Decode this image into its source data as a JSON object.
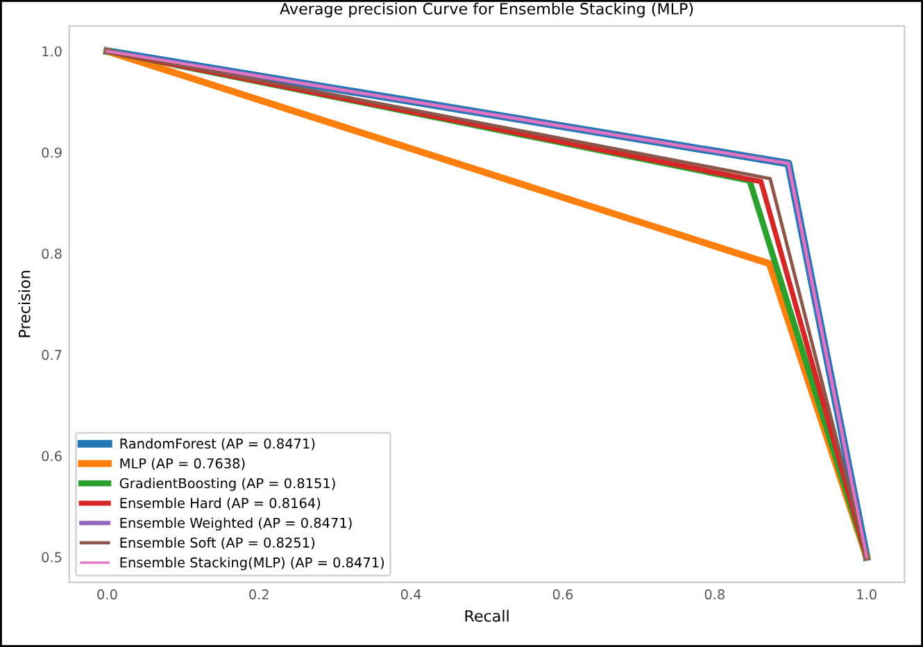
{
  "chart_data": {
    "type": "line",
    "title": "Average precision Curve for Ensemble Stacking (MLP)",
    "xlabel": "Recall",
    "ylabel": "Precision",
    "series": [
      {
        "name": "RandomForest (AP = 0.8471)",
        "color": "#1f77b4",
        "x": [
          0.0,
          0.897,
          1.0
        ],
        "values": [
          1.0,
          0.889,
          0.5
        ]
      },
      {
        "name": "MLP (AP = 0.7638)",
        "color": "#ff7f0e",
        "x": [
          0.0,
          0.872,
          1.0
        ],
        "values": [
          1.0,
          0.79,
          0.5
        ]
      },
      {
        "name": "GradientBoosting (AP = 0.8151)",
        "color": "#2ca02c",
        "x": [
          0.0,
          0.846,
          1.0
        ],
        "values": [
          1.0,
          0.872,
          0.5
        ]
      },
      {
        "name": "Ensemble Hard (AP = 0.8164)",
        "color": "#d62728",
        "x": [
          0.0,
          0.861,
          1.0
        ],
        "values": [
          1.0,
          0.871,
          0.5
        ]
      },
      {
        "name": "Ensemble Weighted (AP = 0.8471)",
        "color": "#9467bd",
        "x": [
          0.0,
          0.897,
          1.0
        ],
        "values": [
          1.0,
          0.889,
          0.5
        ]
      },
      {
        "name": "Ensemble Soft (AP = 0.8251)",
        "color": "#8c564b",
        "x": [
          0.0,
          0.873,
          1.0
        ],
        "values": [
          1.0,
          0.874,
          0.5
        ]
      },
      {
        "name": "Ensemble Stacking(MLP) (AP = 0.8471)",
        "color": "#e377c2",
        "x": [
          0.0,
          0.897,
          1.0
        ],
        "values": [
          1.0,
          0.889,
          0.5
        ]
      }
    ],
    "xlim": [
      -0.05,
      1.05
    ],
    "ylim": [
      0.475,
      1.025
    ],
    "xticks": [
      {
        "value": 0.0,
        "label": "0.0"
      },
      0.2,
      0.4,
      0.6,
      0.8,
      {
        "value": 1.0,
        "label": "1.0"
      }
    ],
    "yticks": [
      {
        "value": 0.5,
        "label": "0.5"
      },
      0.6,
      0.7,
      0.8,
      0.9,
      {
        "value": 1.0,
        "label": "1.0"
      }
    ],
    "grid": false,
    "legend": "bottom left",
    "marker": "none",
    "line_style": "solid"
  }
}
